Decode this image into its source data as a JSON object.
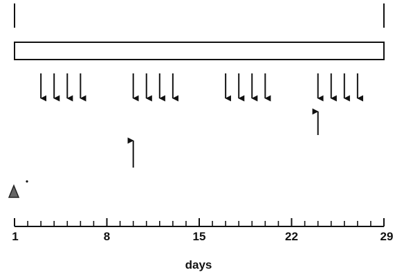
{
  "timeline": {
    "day_start": 1,
    "day_end": 29,
    "tick_labels": [
      "1",
      "8",
      "15",
      "22",
      "29"
    ],
    "axis_label": "days"
  },
  "markers": {
    "down_arrow_days": [
      3,
      4,
      5,
      6,
      10,
      11,
      12,
      13,
      17,
      18,
      19,
      20,
      24,
      25,
      26,
      27
    ],
    "up_arrow_days": [
      10,
      24
    ],
    "triangle_day": 1,
    "boundary_days": [
      1,
      29
    ]
  }
}
